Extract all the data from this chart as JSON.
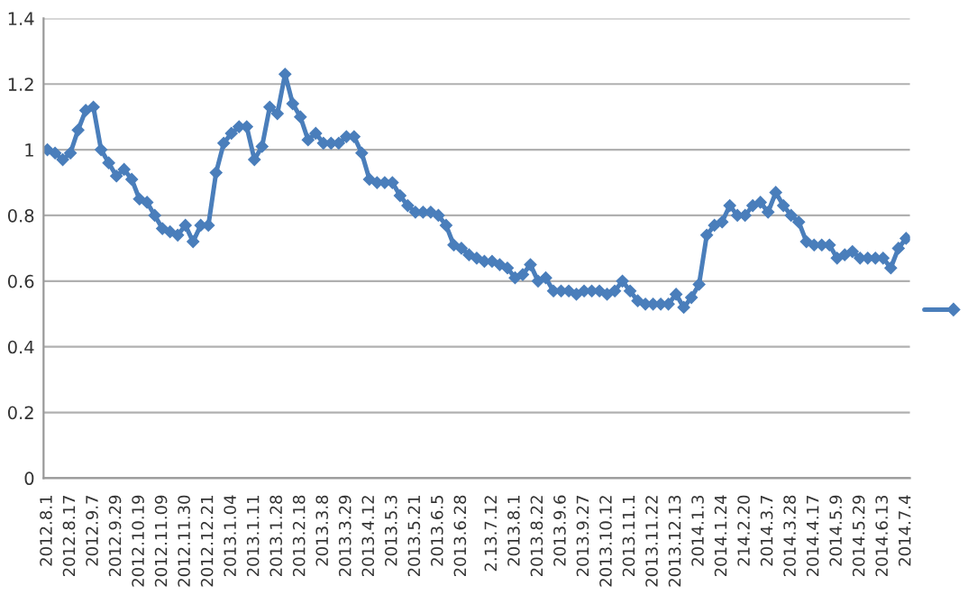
{
  "chart_data": {
    "type": "line",
    "categories": [
      "2012.8.1",
      null,
      null,
      "2012.8.17",
      null,
      null,
      "2012.9.7",
      null,
      null,
      "2012.9.29",
      null,
      null,
      "2012.10.19",
      null,
      null,
      "2012.11.09",
      null,
      null,
      "2012.11.30",
      null,
      null,
      "2012.12.21",
      null,
      null,
      "2013.1.04",
      null,
      null,
      "2013.1.11",
      null,
      null,
      "2013.1.28",
      null,
      null,
      "2013.2.18",
      null,
      null,
      "2013.3.8",
      null,
      null,
      "2013.3.29",
      null,
      null,
      "2013.4.12",
      null,
      null,
      "2013.5.3",
      null,
      null,
      "2013.5.21",
      null,
      null,
      "2013.6.5",
      null,
      null,
      "2013.6.28",
      null,
      null,
      null,
      "2.13.7.12",
      null,
      null,
      "2013.8.1",
      null,
      null,
      "2013.8.22",
      null,
      null,
      "2013.9.6",
      null,
      null,
      "2013.9.27",
      null,
      null,
      "2013.10.12",
      null,
      null,
      "2013.11.1",
      null,
      null,
      "2013.11.22",
      null,
      null,
      "2013.12.13",
      null,
      null,
      "2014.1.3",
      null,
      null,
      "2014.1.24",
      null,
      null,
      "214.2.20",
      null,
      null,
      "2014.3.7",
      null,
      null,
      "2014.3.28",
      null,
      null,
      "2014.4.17",
      null,
      null,
      "2014.5.9",
      null,
      null,
      "2014.5.29",
      null,
      null,
      "2014.6.13",
      null,
      null,
      "2014.7.4"
    ],
    "series": [
      {
        "color": "#4a7ebb",
        "values": [
          1.0,
          0.99,
          0.97,
          0.99,
          1.06,
          1.12,
          1.13,
          1.0,
          0.96,
          0.92,
          0.94,
          0.91,
          0.85,
          0.84,
          0.8,
          0.76,
          0.75,
          0.74,
          0.77,
          0.72,
          0.77,
          0.77,
          0.93,
          1.02,
          1.05,
          1.07,
          1.07,
          0.97,
          1.01,
          1.13,
          1.11,
          1.23,
          1.14,
          1.1,
          1.03,
          1.05,
          1.02,
          1.02,
          1.02,
          1.04,
          1.04,
          0.99,
          0.91,
          0.9,
          0.9,
          0.9,
          0.86,
          0.83,
          0.81,
          0.81,
          0.81,
          0.8,
          0.77,
          0.71,
          0.7,
          0.68,
          0.67,
          0.66,
          0.66,
          0.65,
          0.64,
          0.61,
          0.62,
          0.65,
          0.6,
          0.61,
          0.57,
          0.57,
          0.57,
          0.56,
          0.57,
          0.57,
          0.57,
          0.56,
          0.57,
          0.6,
          0.57,
          0.54,
          0.53,
          0.53,
          0.53,
          0.53,
          0.56,
          0.52,
          0.55,
          0.59,
          0.74,
          0.77,
          0.78,
          0.83,
          0.8,
          0.8,
          0.83,
          0.84,
          0.81,
          0.87,
          0.83,
          0.8,
          0.78,
          0.72,
          0.71,
          0.71,
          0.71,
          0.67,
          0.68,
          0.69,
          0.67,
          0.67,
          0.67,
          0.67,
          0.64,
          0.7,
          0.73
        ]
      }
    ],
    "ylim": [
      0,
      1.4
    ],
    "yticks": [
      0,
      0.2,
      0.4,
      0.6,
      0.8,
      1,
      1.2,
      1.4
    ],
    "grid": "y",
    "marker": "diamond",
    "line_style": "solid"
  }
}
